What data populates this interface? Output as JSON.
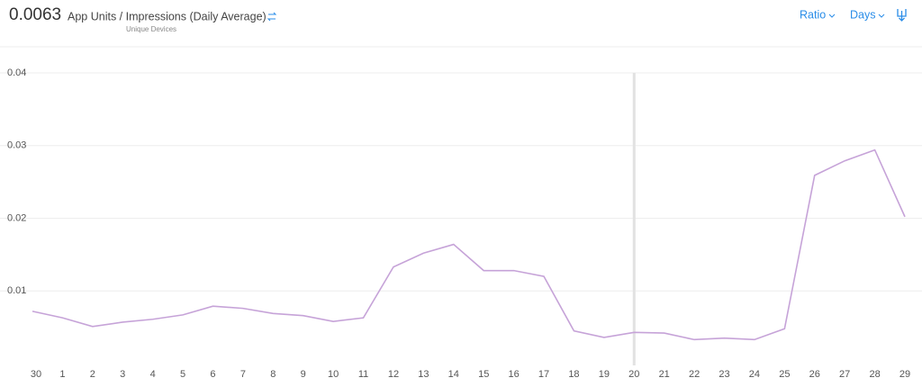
{
  "chart_data": {
    "type": "line",
    "headline_value": "0.0063",
    "title": "App Units / Impressions (Daily Average)",
    "subtitle": "Unique Devices",
    "controls": [
      "Ratio",
      "Days"
    ],
    "categories": [
      "30",
      "1",
      "2",
      "3",
      "4",
      "5",
      "6",
      "7",
      "8",
      "9",
      "10",
      "11",
      "12",
      "13",
      "14",
      "15",
      "16",
      "17",
      "18",
      "19",
      "20",
      "21",
      "22",
      "23",
      "24",
      "25",
      "26",
      "27",
      "28",
      "29"
    ],
    "series": [
      {
        "name": "App Units / Impressions",
        "color": "#c6a3d8",
        "values": [
          0.0072,
          0.0063,
          0.0051,
          0.0057,
          0.0061,
          0.0067,
          0.0079,
          0.0076,
          0.0069,
          0.0066,
          0.0058,
          0.0063,
          0.0133,
          0.0152,
          0.0164,
          0.0128,
          0.0128,
          0.012,
          0.0045,
          0.0036,
          0.0043,
          0.0042,
          0.0033,
          0.0035,
          0.0033,
          0.0048,
          0.0259,
          0.0279,
          0.0294,
          0.0202
        ]
      }
    ],
    "ylim": [
      0,
      0.04
    ],
    "yticks": [
      0.01,
      0.02,
      0.03,
      0.04
    ],
    "grid": true,
    "highlight_index": 20
  }
}
